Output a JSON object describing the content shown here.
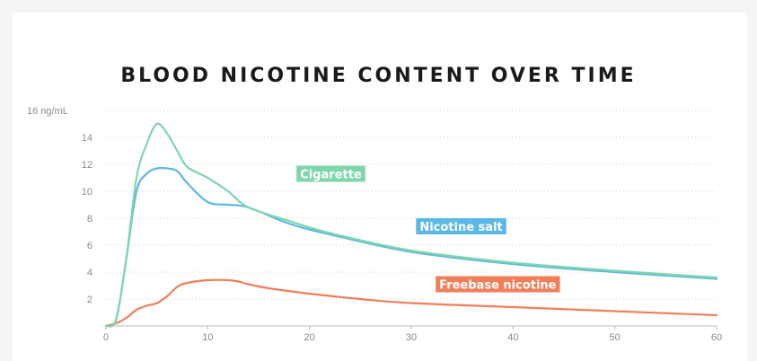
{
  "chart_data": {
    "type": "line",
    "title": "BLOOD NICOTINE CONTENT OVER TIME",
    "ylabel": "",
    "xlabel": "",
    "y_top_tick_label": "16 ng/mL",
    "xlim": [
      0,
      60
    ],
    "ylim": [
      0,
      16
    ],
    "x_ticks": [
      0,
      10,
      20,
      30,
      40,
      50,
      60
    ],
    "y_ticks": [
      2,
      4,
      6,
      8,
      10,
      12,
      14,
      16
    ],
    "grid": true,
    "series": [
      {
        "name": "Cigarette",
        "color": "#7fd6ad",
        "x": [
          0,
          1,
          2,
          3,
          4,
          5,
          6,
          7,
          8,
          10,
          12,
          14,
          18,
          22,
          30,
          40,
          50,
          60
        ],
        "y": [
          0,
          0.5,
          5,
          11,
          13.5,
          15,
          14.3,
          13,
          11.8,
          11,
          10,
          8.8,
          7.8,
          6.9,
          5.6,
          4.7,
          4.1,
          3.6
        ]
      },
      {
        "name": "Nicotine salt",
        "color": "#5bb8e6",
        "x": [
          0,
          1,
          2,
          3,
          4,
          5,
          6,
          7,
          8,
          10,
          12,
          14,
          18,
          22,
          30,
          40,
          50,
          60
        ],
        "y": [
          0,
          0.5,
          5,
          10,
          11.3,
          11.7,
          11.7,
          11.5,
          10.6,
          9.2,
          9,
          8.8,
          7.6,
          6.8,
          5.5,
          4.6,
          4,
          3.5
        ]
      },
      {
        "name": "Freebase nicotine",
        "color": "#f07f5a",
        "x": [
          0,
          1,
          2,
          3,
          4,
          5,
          6,
          7,
          8,
          10,
          12,
          13,
          14,
          16,
          20,
          25,
          30,
          40,
          50,
          60
        ],
        "y": [
          0,
          0.2,
          0.6,
          1.2,
          1.5,
          1.7,
          2.2,
          2.9,
          3.2,
          3.4,
          3.4,
          3.3,
          3.1,
          2.8,
          2.4,
          2.0,
          1.7,
          1.4,
          1.1,
          0.8
        ]
      }
    ]
  }
}
